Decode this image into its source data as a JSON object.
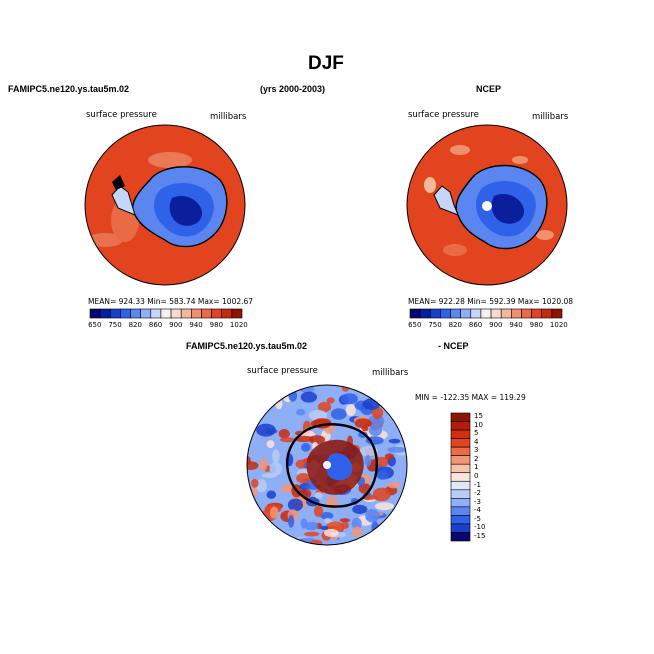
{
  "title": "DJF",
  "header": {
    "left": "FAMIPC5.ne120.ys.tau5m.02",
    "center": "(yrs 2000-2003)",
    "right": "NCEP"
  },
  "panels": [
    {
      "id": "model",
      "variable": "surface pressure",
      "units": "millibars",
      "stats": "MEAN= 924.33   Min= 583.74   Max= 1002.67"
    },
    {
      "id": "obs",
      "variable": "surface pressure",
      "units": "millibars",
      "stats": "MEAN= 922.28   Min= 592.39   Max= 1020.08"
    }
  ],
  "diff_header": {
    "left": "FAMIPC5.ne120.ys.tau5m.02",
    "right": "- NCEP"
  },
  "diff_panel": {
    "variable": "surface pressure",
    "units": "millibars",
    "stats": "MIN = -122.35  MAX = 119.29"
  },
  "chart_data": [
    {
      "type": "heatmap",
      "title": "FAMIPC5.ne120.ys.tau5m.02",
      "variable": "surface pressure",
      "units": "millibars",
      "projection": "south polar stereographic",
      "mean": 924.33,
      "min": 583.74,
      "max": 1002.67,
      "colorbar_labels": [
        "650",
        "750",
        "820",
        "860",
        "900",
        "940",
        "980",
        "1020"
      ],
      "colorbar_levels": [
        650,
        700,
        750,
        800,
        820,
        840,
        860,
        880,
        900,
        920,
        940,
        960,
        980,
        1000,
        1020
      ]
    },
    {
      "type": "heatmap",
      "title": "NCEP",
      "variable": "surface pressure",
      "units": "millibars",
      "projection": "south polar stereographic",
      "mean": 922.28,
      "min": 592.39,
      "max": 1020.08,
      "colorbar_labels": [
        "650",
        "750",
        "820",
        "860",
        "900",
        "940",
        "980",
        "1020"
      ],
      "colorbar_levels": [
        650,
        700,
        750,
        800,
        820,
        840,
        860,
        880,
        900,
        920,
        940,
        960,
        980,
        1000,
        1020
      ]
    },
    {
      "type": "heatmap",
      "title": "FAMIPC5.ne120.ys.tau5m.02 - NCEP",
      "variable": "surface pressure",
      "units": "millibars",
      "projection": "south polar stereographic",
      "min": -122.35,
      "max": 119.29,
      "colorbar_labels": [
        "15",
        "10",
        "5",
        "4",
        "3",
        "2",
        "1",
        "0",
        "-1",
        "-2",
        "-3",
        "-4",
        "-5",
        "-10",
        "-15"
      ]
    }
  ],
  "palettes": {
    "abs": [
      "#08086e",
      "#0b1e9c",
      "#1a3fcc",
      "#2f62e8",
      "#5b86f2",
      "#8eaef6",
      "#c4d6fa",
      "#f5f0f0",
      "#fadccb",
      "#f6b89a",
      "#f0906c",
      "#e96a45",
      "#e2441f",
      "#c62a10",
      "#8e1406"
    ],
    "diff": [
      "#8e1406",
      "#b31c0a",
      "#d1300f",
      "#e2441f",
      "#ec6a46",
      "#f39677",
      "#f8c1a9",
      "#fbe4d8",
      "#dfe9fb",
      "#b8ccf6",
      "#8eaef6",
      "#5b86f2",
      "#2f62e8",
      "#1a3fcc",
      "#08086e"
    ]
  }
}
